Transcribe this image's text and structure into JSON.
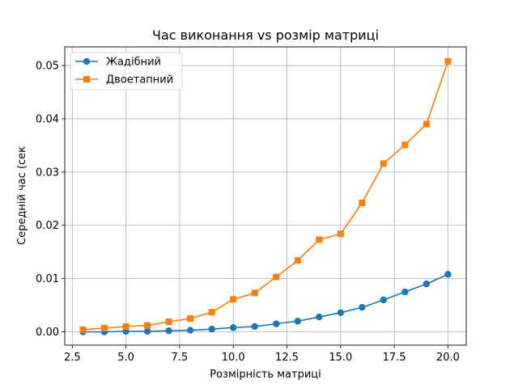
{
  "chart_data": {
    "type": "line",
    "title": "Час виконання vs розмір матриці",
    "xlabel": "Розмірність матриці",
    "ylabel": "Середній час (сек",
    "xlim": [
      2.15,
      20.85
    ],
    "ylim": [
      -0.0025,
      0.0535
    ],
    "x": [
      3,
      4,
      5,
      6,
      7,
      8,
      9,
      10,
      11,
      12,
      13,
      14,
      15,
      16,
      17,
      18,
      19,
      20
    ],
    "xticks": [
      2.5,
      5.0,
      7.5,
      10.0,
      12.5,
      15.0,
      17.5,
      20.0
    ],
    "xtick_labels": [
      "2.5",
      "5.0",
      "7.5",
      "10.0",
      "12.5",
      "15.0",
      "17.5",
      "20.0"
    ],
    "yticks": [
      0.0,
      0.01,
      0.02,
      0.03,
      0.04,
      0.05
    ],
    "ytick_labels": [
      "0.00",
      "0.01",
      "0.02",
      "0.03",
      "0.04",
      "0.05"
    ],
    "grid": true,
    "legend_position": "upper-left",
    "series": [
      {
        "name": "Жадібний",
        "color": "#1f77b4",
        "marker": "circle",
        "values": [
          0.0,
          0.0,
          0.0001,
          0.0001,
          0.0002,
          0.0003,
          0.0005,
          0.0008,
          0.001,
          0.0015,
          0.002,
          0.0028,
          0.0036,
          0.0046,
          0.006,
          0.0075,
          0.009,
          0.0108
        ]
      },
      {
        "name": "Двоетапний",
        "color": "#ff7f0e",
        "marker": "square",
        "values": [
          0.0004,
          0.0007,
          0.001,
          0.0012,
          0.0019,
          0.0025,
          0.0037,
          0.0061,
          0.0073,
          0.0103,
          0.0134,
          0.0173,
          0.0184,
          0.0242,
          0.0316,
          0.0351,
          0.039,
          0.0508
        ]
      }
    ]
  }
}
